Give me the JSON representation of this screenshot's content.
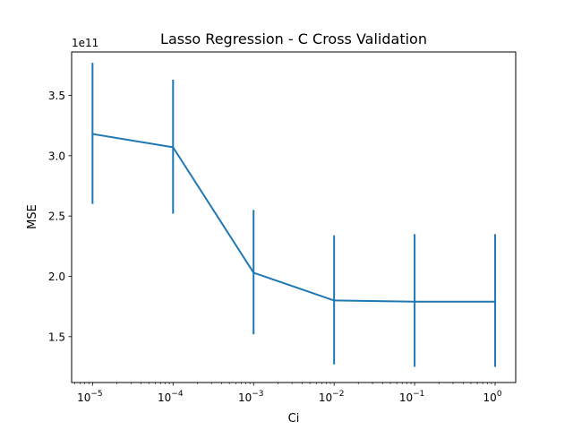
{
  "chart_data": {
    "type": "line",
    "title": "Lasso Regression - C Cross Validation",
    "xlabel": "Ci",
    "ylabel": "MSE",
    "x_scale": "log",
    "y_offset_label": "1e11",
    "x": [
      1e-05,
      0.0001,
      0.001,
      0.01,
      0.1,
      1
    ],
    "x_tick_labels": [
      {
        "base": "10",
        "exp": "−5"
      },
      {
        "base": "10",
        "exp": "−4"
      },
      {
        "base": "10",
        "exp": "−3"
      },
      {
        "base": "10",
        "exp": "−2"
      },
      {
        "base": "10",
        "exp": "−1"
      },
      {
        "base": "10",
        "exp": "0"
      }
    ],
    "y_ticks": [
      1.5,
      2.0,
      2.5,
      3.0,
      3.5
    ],
    "y_tick_labels": [
      "1.5",
      "2.0",
      "2.5",
      "3.0",
      "3.5"
    ],
    "xlim": [
      5.5e-06,
      1.8
    ],
    "ylim": [
      1.12,
      3.86
    ],
    "series": [
      {
        "color": "#1f77b4",
        "values": [
          3.18,
          3.07,
          2.03,
          1.8,
          1.79,
          1.79
        ],
        "err_low": [
          2.6,
          2.52,
          1.52,
          1.27,
          1.25,
          1.25
        ],
        "err_high": [
          3.77,
          3.63,
          2.55,
          2.34,
          2.35,
          2.35
        ]
      }
    ],
    "grid": false,
    "legend": "none"
  }
}
